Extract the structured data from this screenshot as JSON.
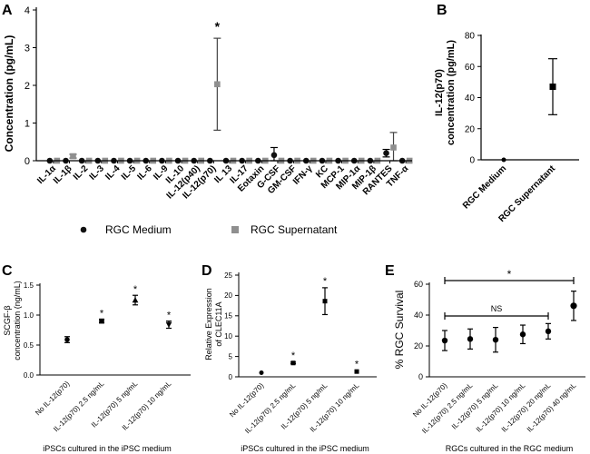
{
  "panels": {
    "A": {
      "letter": "A",
      "ylabel": "Concentration (pg/mL)",
      "ylim": [
        0,
        4
      ],
      "yticks": [
        "0",
        "1",
        "2",
        "3",
        "4"
      ],
      "categories": [
        "IL-1α",
        "IL-1β",
        "IL-2",
        "IL-3",
        "IL-4",
        "IL-5",
        "IL-6",
        "IL-9",
        "IL-10",
        "IL-12(p40)",
        "IL-12(p70)",
        "IL 13",
        "IL-17",
        "Eotaxin",
        "G-CSF",
        "GM-CSF",
        "IFN-γ",
        "KC",
        "MCP-1",
        "MIP-1α",
        "MIP-1β",
        "RANTES",
        "TNF-α"
      ],
      "series": [
        {
          "name": "RGC Medium",
          "marker": "circle",
          "values": [
            0,
            0,
            0,
            0,
            0,
            0,
            0,
            0,
            0,
            0,
            0,
            0,
            0,
            0,
            0.15,
            0,
            0,
            0,
            0,
            0,
            0,
            0.2,
            0
          ],
          "err": [
            0,
            0,
            0,
            0,
            0,
            0,
            0,
            0,
            0,
            0,
            0,
            0,
            0,
            0,
            0.2,
            0,
            0,
            0,
            0,
            0,
            0,
            0.1,
            0
          ]
        },
        {
          "name": "RGC Supernatant",
          "marker": "square",
          "values": [
            0,
            0.12,
            0,
            0,
            0,
            0,
            0,
            0,
            0,
            0,
            2.03,
            0,
            0,
            0,
            0,
            0,
            0,
            0,
            0,
            0,
            0,
            0.35,
            0
          ],
          "err": [
            0,
            0.05,
            0,
            0,
            0,
            0,
            0,
            0,
            0,
            0,
            1.22,
            0,
            0,
            0,
            0,
            0,
            0,
            0,
            0,
            0,
            0,
            0.4,
            0
          ]
        }
      ],
      "annotations": [
        {
          "category": "IL-12(p70)",
          "text": "*"
        }
      ],
      "legend": [
        "RGC Medium",
        "RGC Supernatant"
      ]
    },
    "B": {
      "letter": "B",
      "ylabel_line1": "IL-12(p70)",
      "ylabel_line2": "concentration (pg/mL)",
      "ylim": [
        0,
        80
      ],
      "yticks": [
        "0",
        "20",
        "40",
        "60",
        "80"
      ],
      "categories": [
        "RGC Medium",
        "RGC Supernatant"
      ],
      "values": [
        0,
        47
      ],
      "err": [
        0,
        18
      ]
    },
    "C": {
      "letter": "C",
      "ylabel_line1": "SCGF-β",
      "ylabel_line2": "concentration (ng/mL)",
      "ylim": [
        0,
        1.5
      ],
      "yticks": [
        "0.0",
        "0.5",
        "1.0",
        "1.5"
      ],
      "categories": [
        "No IL-12(p70)",
        "IL-12(p70) 2.5 ng/mL",
        "IL-12(p70) 5 ng/mL",
        "IL-12(p70) 10 ng/mL"
      ],
      "values": [
        0.59,
        0.9,
        1.25,
        0.84
      ],
      "err": [
        0.05,
        0.03,
        0.08,
        0.06
      ],
      "markers": [
        "circle",
        "square",
        "triangle-up",
        "triangle-down"
      ],
      "stars": [
        "",
        "*",
        "*",
        "*"
      ],
      "xlabel": "iPSCs cultured in the iPSC medium"
    },
    "D": {
      "letter": "D",
      "ylabel_line1": "Relative Expression",
      "ylabel_line2": "of CLEC11A",
      "ylim": [
        0,
        25
      ],
      "yticks": [
        "0",
        "5",
        "10",
        "15",
        "20",
        "25"
      ],
      "categories": [
        "No IL-12(p70)",
        "IL-12(p70) 2.5 ng/mL",
        "IL-12(p70) 5 ng/mL",
        "IL-12(p70) 10 ng/mL"
      ],
      "values": [
        1,
        3.4,
        18.6,
        1.3
      ],
      "err": [
        0.1,
        0.2,
        3.3,
        0.1
      ],
      "markers": [
        "circle",
        "square",
        "square",
        "square"
      ],
      "stars": [
        "",
        "*",
        "*",
        "*"
      ],
      "xlabel": "iPSCs cultured in the iPSC medium"
    },
    "E": {
      "letter": "E",
      "ylabel": "% RGC Survival",
      "ylim": [
        0,
        60
      ],
      "yticks": [
        "0",
        "20",
        "40",
        "60"
      ],
      "categories": [
        "No IL-12(p70)",
        "IL-12(p70) 2.5 ng/mL",
        "IL-12(p70) 5 ng/mL",
        "IL-12(p70) 10 ng/mL",
        "IL-12(p70) 20 ng/mL",
        "IL-12(p70) 40 ng/mL"
      ],
      "values": [
        23.5,
        24.5,
        24,
        27.5,
        29.5,
        46
      ],
      "err": [
        6.5,
        6.5,
        8,
        6,
        5,
        9.5
      ],
      "bracket_star": "*",
      "bracket_ns": "NS",
      "xlabel": "RGCs cultured in the RGC medium"
    }
  },
  "colors": {
    "medium": "#111111",
    "supernatant": "#8f8f8f",
    "axis": "#000000"
  }
}
